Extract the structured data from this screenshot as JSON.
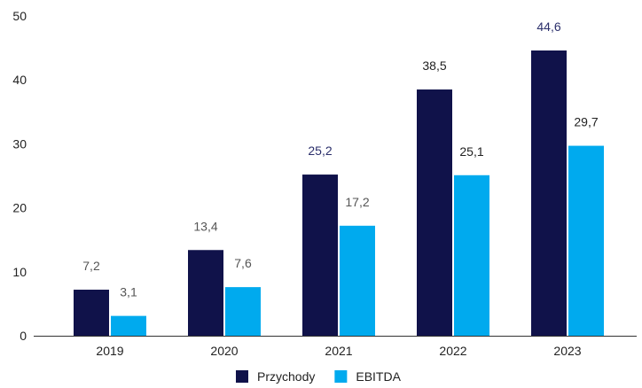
{
  "chart_data": {
    "type": "bar",
    "categories": [
      "2019",
      "2020",
      "2021",
      "2022",
      "2023"
    ],
    "series": [
      {
        "name": "Przychody",
        "color": "#10124a",
        "values": [
          7.2,
          13.4,
          25.2,
          38.5,
          44.6
        ],
        "labels": [
          "7,2",
          "13,4",
          "25,2",
          "38,5",
          "44,6"
        ],
        "label_colors": [
          "#555555",
          "#555555",
          "#2b2f6b",
          "#222222",
          "#2b2f6b"
        ]
      },
      {
        "name": "EBITDA",
        "color": "#00aaee",
        "values": [
          3.1,
          7.6,
          17.2,
          25.1,
          29.7
        ],
        "labels": [
          "3,1",
          "7,6",
          "17,2",
          "25,1",
          "29,7"
        ],
        "label_colors": [
          "#555555",
          "#555555",
          "#555555",
          "#222222",
          "#222222"
        ]
      }
    ],
    "y_ticks": [
      "0",
      "10",
      "20",
      "30",
      "40",
      "50"
    ],
    "ylim": [
      0,
      50
    ],
    "grid": false,
    "legend_position": "bottom-center",
    "title": "",
    "xlabel": "",
    "ylabel": ""
  }
}
